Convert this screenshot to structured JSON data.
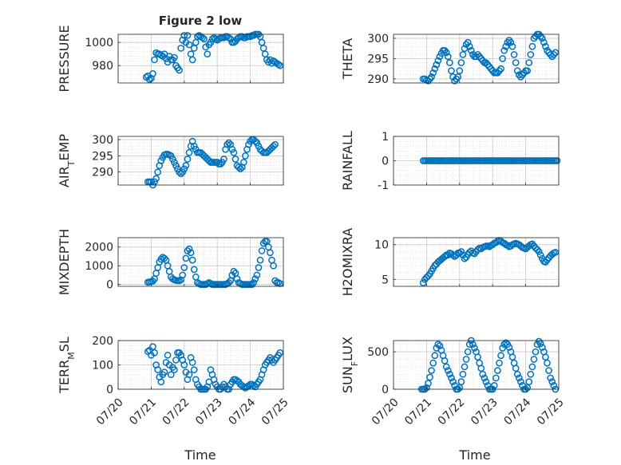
{
  "figure": {
    "title": "Figure 2 low",
    "xlabel": "Time",
    "marker_color": "#0072bd",
    "time_ticks": [
      "07/20",
      "07/21",
      "07/22",
      "07/23",
      "07/24",
      "07/25"
    ]
  },
  "chart_data": [
    {
      "type": "scatter",
      "title": "Figure 2 low",
      "ylabel": "PRESSURE",
      "xlabel": "",
      "xlim": [
        0,
        5
      ],
      "ylim": [
        965,
        1007
      ],
      "yticks": [
        980,
        1000
      ],
      "grid": true,
      "minor_grid": true,
      "x": [
        0.85,
        0.9,
        0.95,
        1.0,
        1.05,
        1.1,
        1.15,
        1.2,
        1.25,
        1.3,
        1.35,
        1.4,
        1.45,
        1.5,
        1.55,
        1.6,
        1.65,
        1.7,
        1.75,
        1.8,
        1.85,
        1.9,
        1.95,
        2.0,
        2.05,
        2.1,
        2.15,
        2.2,
        2.25,
        2.3,
        2.35,
        2.4,
        2.45,
        2.5,
        2.55,
        2.6,
        2.65,
        2.7,
        2.75,
        2.8,
        2.85,
        2.9,
        2.95,
        3.0,
        3.05,
        3.1,
        3.15,
        3.2,
        3.25,
        3.3,
        3.35,
        3.4,
        3.45,
        3.5,
        3.55,
        3.6,
        3.65,
        3.7,
        3.75,
        3.8,
        3.85,
        3.9,
        3.95,
        4.0,
        4.05,
        4.1,
        4.15,
        4.2,
        4.25,
        4.3,
        4.35,
        4.4,
        4.45,
        4.5,
        4.55,
        4.6,
        4.65,
        4.7,
        4.75,
        4.8,
        4.85,
        4.9
      ],
      "y": [
        970,
        971,
        968,
        969,
        973,
        985,
        991,
        990,
        990,
        989,
        988,
        990,
        986,
        983,
        988,
        985,
        985,
        987,
        980,
        978,
        976,
        995,
        1002,
        1006,
        1000,
        1006,
        998,
        990,
        985,
        995,
        1000,
        1005,
        1006,
        1005,
        1004,
        1003,
        996,
        990,
        998,
        1000,
        1003,
        1004,
        1003,
        1002,
        1003,
        1004,
        1004,
        1004,
        1005,
        1005,
        1004,
        1003,
        1000,
        1000,
        1001,
        1003,
        1004,
        1005,
        1005,
        1004,
        1004,
        1005,
        1005,
        1005,
        1006,
        1006,
        1007,
        1007,
        1007,
        1005,
        1000,
        995,
        990,
        985,
        983,
        985,
        982,
        984,
        983,
        982,
        981,
        980
      ]
    },
    {
      "type": "scatter",
      "ylabel": "THETA",
      "xlim": [
        0,
        5
      ],
      "ylim": [
        289,
        301
      ],
      "yticks": [
        290,
        295,
        300
      ],
      "grid": true,
      "minor_grid": true,
      "x": [
        0.9,
        0.95,
        1.0,
        1.05,
        1.1,
        1.15,
        1.2,
        1.25,
        1.3,
        1.35,
        1.4,
        1.45,
        1.5,
        1.55,
        1.6,
        1.65,
        1.7,
        1.75,
        1.8,
        1.85,
        1.9,
        1.95,
        2.0,
        2.05,
        2.1,
        2.15,
        2.2,
        2.25,
        2.3,
        2.35,
        2.4,
        2.45,
        2.5,
        2.55,
        2.6,
        2.65,
        2.7,
        2.75,
        2.8,
        2.85,
        2.9,
        2.95,
        3.0,
        3.05,
        3.1,
        3.15,
        3.2,
        3.25,
        3.3,
        3.35,
        3.4,
        3.45,
        3.5,
        3.55,
        3.6,
        3.65,
        3.7,
        3.75,
        3.8,
        3.85,
        3.9,
        3.95,
        4.0,
        4.05,
        4.1,
        4.15,
        4.2,
        4.25,
        4.3,
        4.35,
        4.4,
        4.45,
        4.5,
        4.55,
        4.6,
        4.65,
        4.7,
        4.75,
        4.8,
        4.85,
        4.9
      ],
      "y": [
        290,
        290,
        289.7,
        289.5,
        290,
        290.5,
        291.5,
        292.5,
        293.5,
        294.5,
        295.5,
        296.3,
        297,
        297,
        296.5,
        295.5,
        294,
        292,
        290.5,
        289.5,
        290,
        290.5,
        292,
        294,
        296,
        297.5,
        298.5,
        299,
        298,
        297,
        296,
        295.5,
        295.5,
        296,
        295.5,
        295,
        294.5,
        294,
        294,
        293.5,
        293,
        292.5,
        292,
        291.5,
        291.5,
        291.5,
        292,
        292.5,
        295,
        297,
        298,
        299,
        299.5,
        299,
        298,
        296,
        294,
        292,
        291,
        290.5,
        291,
        291.5,
        292,
        292,
        294,
        296,
        298,
        300,
        300.5,
        301,
        301,
        300.5,
        300,
        299,
        298,
        297,
        296.5,
        296,
        295.5,
        296,
        296.5
      ]
    },
    {
      "type": "scatter",
      "ylabel": "AIR_TEMP",
      "xlim": [
        0,
        5
      ],
      "ylim": [
        286,
        301
      ],
      "yticks": [
        290,
        295,
        300
      ],
      "grid": true,
      "minor_grid": true,
      "x": [
        0.9,
        0.95,
        1.0,
        1.05,
        1.1,
        1.15,
        1.2,
        1.25,
        1.3,
        1.35,
        1.4,
        1.45,
        1.5,
        1.55,
        1.6,
        1.65,
        1.7,
        1.75,
        1.8,
        1.85,
        1.9,
        1.95,
        2.0,
        2.05,
        2.1,
        2.15,
        2.2,
        2.25,
        2.3,
        2.35,
        2.4,
        2.45,
        2.5,
        2.55,
        2.6,
        2.65,
        2.7,
        2.75,
        2.8,
        2.85,
        2.9,
        2.95,
        3.0,
        3.05,
        3.1,
        3.15,
        3.2,
        3.25,
        3.3,
        3.35,
        3.4,
        3.45,
        3.5,
        3.55,
        3.6,
        3.65,
        3.7,
        3.75,
        3.8,
        3.85,
        3.9,
        3.95,
        4.0,
        4.05,
        4.1,
        4.15,
        4.2,
        4.25,
        4.3,
        4.35,
        4.4,
        4.45,
        4.5,
        4.55,
        4.6,
        4.65,
        4.7,
        4.75
      ],
      "y": [
        287,
        287,
        287,
        286,
        287,
        288,
        290,
        292,
        293.5,
        294.5,
        295.3,
        295.5,
        295.5,
        295.3,
        295,
        294,
        293,
        292,
        291,
        290,
        289.5,
        290,
        291,
        292,
        294,
        296,
        298,
        299.5,
        298,
        297,
        296,
        296,
        296,
        295.5,
        295,
        294.5,
        294,
        293.5,
        293,
        293,
        293,
        293,
        293,
        292.5,
        292.5,
        293,
        294,
        297,
        298.5,
        299,
        298.5,
        297,
        296,
        294,
        292,
        291.5,
        291,
        291.5,
        293,
        295,
        297,
        298.5,
        299.5,
        300,
        300,
        299.5,
        299,
        298,
        297,
        296.5,
        296,
        296,
        296,
        296.5,
        297,
        297.5,
        298,
        298.5
      ]
    },
    {
      "type": "scatter",
      "ylabel": "RAINFALL",
      "xlim": [
        0,
        5
      ],
      "ylim": [
        -1,
        1
      ],
      "yticks": [
        -1,
        0,
        1
      ],
      "grid": true,
      "minor_grid": true,
      "x_start": 0.9,
      "x_end": 4.95,
      "x_step": 0.05,
      "constant_y": 0
    },
    {
      "type": "scatter",
      "ylabel": "MIXDEPTH",
      "xlim": [
        0,
        5
      ],
      "ylim": [
        -100,
        2500
      ],
      "yticks": [
        0,
        1000,
        2000
      ],
      "grid": true,
      "minor_grid": true,
      "x": [
        0.9,
        0.95,
        1.0,
        1.05,
        1.1,
        1.15,
        1.2,
        1.25,
        1.3,
        1.35,
        1.4,
        1.45,
        1.5,
        1.55,
        1.6,
        1.65,
        1.7,
        1.75,
        1.8,
        1.85,
        1.9,
        1.95,
        2.0,
        2.05,
        2.1,
        2.15,
        2.2,
        2.25,
        2.3,
        2.35,
        2.4,
        2.45,
        2.5,
        2.55,
        2.6,
        2.65,
        2.7,
        2.75,
        2.8,
        2.85,
        2.9,
        2.95,
        3.0,
        3.05,
        3.1,
        3.15,
        3.2,
        3.25,
        3.3,
        3.35,
        3.4,
        3.45,
        3.5,
        3.55,
        3.6,
        3.65,
        3.7,
        3.75,
        3.8,
        3.85,
        3.9,
        3.95,
        4.0,
        4.05,
        4.1,
        4.15,
        4.2,
        4.25,
        4.3,
        4.35,
        4.4,
        4.45,
        4.5,
        4.55,
        4.6,
        4.65,
        4.7,
        4.75,
        4.8,
        4.85,
        4.9
      ],
      "y": [
        120,
        130,
        150,
        180,
        300,
        600,
        900,
        1200,
        1350,
        1450,
        1400,
        1300,
        1000,
        700,
        400,
        300,
        250,
        220,
        200,
        200,
        250,
        500,
        900,
        1400,
        1800,
        1900,
        1700,
        1300,
        800,
        400,
        100,
        50,
        0,
        0,
        0,
        0,
        50,
        100,
        50,
        0,
        0,
        0,
        0,
        0,
        0,
        0,
        0,
        0,
        50,
        100,
        200,
        500,
        700,
        600,
        300,
        100,
        50,
        0,
        0,
        0,
        0,
        0,
        0,
        0,
        100,
        300,
        500,
        900,
        1300,
        1800,
        2200,
        2300,
        2300,
        2000,
        1700,
        1300,
        1000,
        200,
        100,
        100,
        50
      ]
    },
    {
      "type": "scatter",
      "ylabel": "H2OMIXRA",
      "xlim": [
        0,
        5
      ],
      "ylim": [
        4,
        11
      ],
      "yticks": [
        5,
        10
      ],
      "grid": true,
      "minor_grid": true,
      "x": [
        0.9,
        0.95,
        1.0,
        1.05,
        1.1,
        1.15,
        1.2,
        1.25,
        1.3,
        1.35,
        1.4,
        1.45,
        1.5,
        1.55,
        1.6,
        1.65,
        1.7,
        1.75,
        1.8,
        1.85,
        1.9,
        1.95,
        2.0,
        2.05,
        2.1,
        2.15,
        2.2,
        2.25,
        2.3,
        2.35,
        2.4,
        2.45,
        2.5,
        2.55,
        2.6,
        2.65,
        2.7,
        2.75,
        2.8,
        2.85,
        2.9,
        2.95,
        3.0,
        3.05,
        3.1,
        3.15,
        3.2,
        3.25,
        3.3,
        3.35,
        3.4,
        3.45,
        3.5,
        3.55,
        3.6,
        3.65,
        3.7,
        3.75,
        3.8,
        3.85,
        3.9,
        3.95,
        4.0,
        4.05,
        4.1,
        4.15,
        4.2,
        4.25,
        4.3,
        4.35,
        4.4,
        4.45,
        4.5,
        4.55,
        4.6,
        4.65,
        4.7,
        4.75,
        4.8,
        4.85,
        4.9
      ],
      "y": [
        4.5,
        5,
        5.3,
        5.5,
        5.8,
        6.2,
        6.6,
        7,
        7.2,
        7.5,
        7.7,
        7.9,
        8.1,
        8.3,
        8.5,
        8.5,
        8.8,
        8.7,
        8.5,
        8.3,
        8.5,
        8.8,
        8.8,
        9,
        8.5,
        8,
        8.2,
        8.6,
        8.9,
        9.1,
        8.8,
        8.7,
        9,
        9.3,
        9.5,
        9.4,
        9.6,
        9.7,
        9.8,
        9.8,
        9.7,
        9.9,
        10,
        10.2,
        10.3,
        10.5,
        10.6,
        10.5,
        10.3,
        10.2,
        10,
        9.9,
        9.7,
        9.8,
        10,
        10.1,
        10.2,
        10.1,
        10,
        9.8,
        9.6,
        9.5,
        9.4,
        9.6,
        9.8,
        10,
        10.1,
        9.8,
        9.5,
        9.3,
        9,
        8.5,
        8,
        7.6,
        7.5,
        7.8,
        8.1,
        8.4,
        8.6,
        8.8,
        8.9
      ]
    },
    {
      "type": "scatter",
      "ylabel": "TERR_MSL",
      "xlabel": "Time",
      "xlim": [
        0,
        5
      ],
      "xticks": [
        0,
        1,
        2,
        3,
        4,
        5
      ],
      "ylim": [
        0,
        200
      ],
      "yticks": [
        0,
        100,
        200
      ],
      "grid": true,
      "minor_grid": true,
      "x": [
        0.9,
        0.95,
        1.0,
        1.05,
        1.1,
        1.15,
        1.2,
        1.25,
        1.3,
        1.35,
        1.4,
        1.45,
        1.5,
        1.55,
        1.6,
        1.65,
        1.7,
        1.75,
        1.8,
        1.85,
        1.9,
        1.95,
        2.0,
        2.05,
        2.1,
        2.15,
        2.2,
        2.25,
        2.3,
        2.35,
        2.4,
        2.45,
        2.5,
        2.55,
        2.6,
        2.65,
        2.7,
        2.75,
        2.8,
        2.85,
        2.9,
        2.95,
        3.0,
        3.05,
        3.1,
        3.15,
        3.2,
        3.25,
        3.3,
        3.35,
        3.4,
        3.45,
        3.5,
        3.55,
        3.6,
        3.65,
        3.7,
        3.75,
        3.8,
        3.85,
        3.9,
        3.95,
        4.0,
        4.05,
        4.1,
        4.15,
        4.2,
        4.25,
        4.3,
        4.35,
        4.4,
        4.45,
        4.5,
        4.55,
        4.6,
        4.65,
        4.7,
        4.75,
        4.8,
        4.85,
        4.9
      ],
      "y": [
        155,
        160,
        140,
        175,
        150,
        100,
        80,
        50,
        30,
        60,
        70,
        110,
        140,
        100,
        60,
        90,
        80,
        120,
        150,
        150,
        140,
        120,
        100,
        70,
        40,
        60,
        130,
        110,
        80,
        40,
        20,
        10,
        0,
        0,
        0,
        0,
        10,
        30,
        80,
        60,
        40,
        20,
        10,
        0,
        0,
        10,
        20,
        10,
        0,
        0,
        20,
        30,
        40,
        40,
        35,
        30,
        20,
        15,
        10,
        5,
        10,
        15,
        20,
        20,
        15,
        10,
        20,
        30,
        40,
        60,
        80,
        100,
        110,
        120,
        130,
        120,
        110,
        120,
        130,
        140,
        150
      ]
    },
    {
      "type": "scatter",
      "ylabel": "SUN_FLUX",
      "xlabel": "Time",
      "xlim": [
        0,
        5
      ],
      "xticks": [
        0,
        1,
        2,
        3,
        4,
        5
      ],
      "ylim": [
        0,
        650
      ],
      "yticks": [
        0,
        500
      ],
      "grid": true,
      "minor_grid": true,
      "x": [
        0.85,
        0.9,
        0.95,
        1.0,
        1.05,
        1.1,
        1.15,
        1.2,
        1.25,
        1.3,
        1.35,
        1.4,
        1.45,
        1.5,
        1.55,
        1.6,
        1.65,
        1.7,
        1.75,
        1.8,
        1.85,
        1.9,
        1.95,
        2.0,
        2.05,
        2.1,
        2.15,
        2.2,
        2.25,
        2.3,
        2.35,
        2.4,
        2.45,
        2.5,
        2.55,
        2.6,
        2.65,
        2.7,
        2.75,
        2.8,
        2.85,
        2.9,
        2.95,
        3.0,
        3.05,
        3.1,
        3.15,
        3.2,
        3.25,
        3.3,
        3.35,
        3.4,
        3.45,
        3.5,
        3.55,
        3.6,
        3.65,
        3.7,
        3.75,
        3.8,
        3.85,
        3.9,
        3.95,
        4.0,
        4.05,
        4.1,
        4.15,
        4.2,
        4.25,
        4.3,
        4.35,
        4.4,
        4.45,
        4.5,
        4.55,
        4.6,
        4.65,
        4.7,
        4.75,
        4.8,
        4.85,
        4.9
      ],
      "y": [
        0,
        0,
        0,
        20,
        80,
        160,
        250,
        350,
        450,
        550,
        600,
        580,
        520,
        450,
        380,
        300,
        250,
        200,
        150,
        100,
        50,
        0,
        0,
        20,
        100,
        200,
        300,
        400,
        500,
        600,
        650,
        600,
        550,
        500,
        430,
        350,
        280,
        200,
        150,
        100,
        50,
        0,
        0,
        0,
        50,
        150,
        250,
        350,
        450,
        550,
        600,
        620,
        600,
        560,
        500,
        430,
        350,
        280,
        200,
        150,
        100,
        50,
        0,
        0,
        20,
        100,
        200,
        300,
        400,
        500,
        600,
        640,
        610,
        560,
        500,
        430,
        350,
        250,
        150,
        100,
        50,
        0
      ]
    }
  ]
}
